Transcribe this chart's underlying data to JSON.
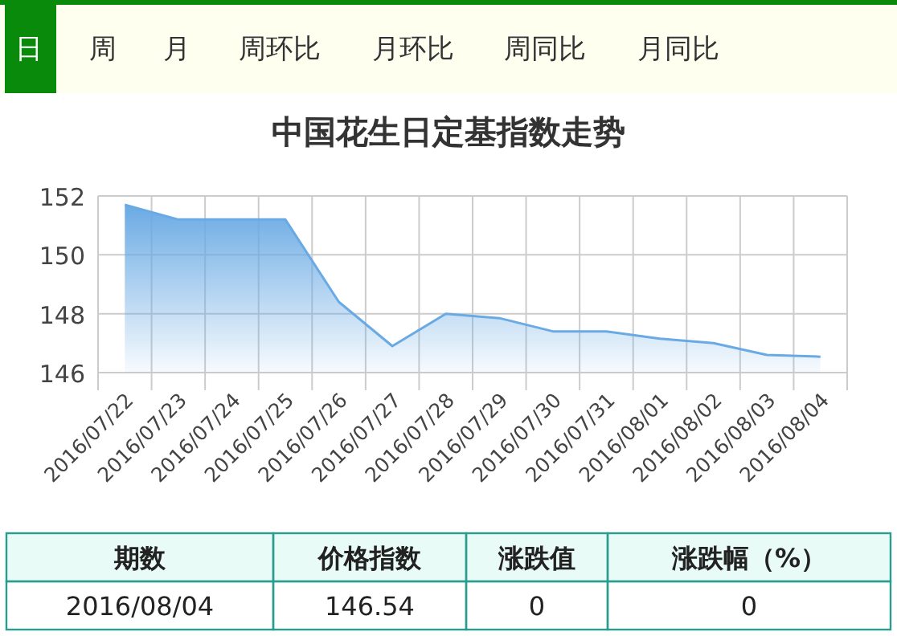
{
  "chart_data": {
    "type": "area",
    "title": "中国花生日定基指数走势",
    "categories": [
      "2016/07/22",
      "2016/07/23",
      "2016/07/24",
      "2016/07/25",
      "2016/07/26",
      "2016/07/27",
      "2016/07/28",
      "2016/07/29",
      "2016/07/30",
      "2016/07/31",
      "2016/08/01",
      "2016/08/02",
      "2016/08/03",
      "2016/08/04"
    ],
    "series": [
      {
        "color": "#6aaae4",
        "values": [
          151.7,
          151.2,
          151.2,
          151.2,
          148.4,
          146.9,
          148.0,
          147.85,
          147.4,
          147.4,
          147.15,
          147.0,
          146.6,
          146.54
        ]
      }
    ],
    "ylim": [
      146,
      152
    ],
    "yticks": [
      146,
      148,
      150,
      152
    ],
    "grid": true,
    "annotations": [
      "日",
      "周",
      "月",
      "周环比",
      "月环比",
      "周同比",
      "月同比",
      "期数",
      "价格指数",
      "涨跌值",
      "涨跌幅（%）",
      "2016/08/04",
      "146.54",
      "0",
      "0"
    ]
  }
}
